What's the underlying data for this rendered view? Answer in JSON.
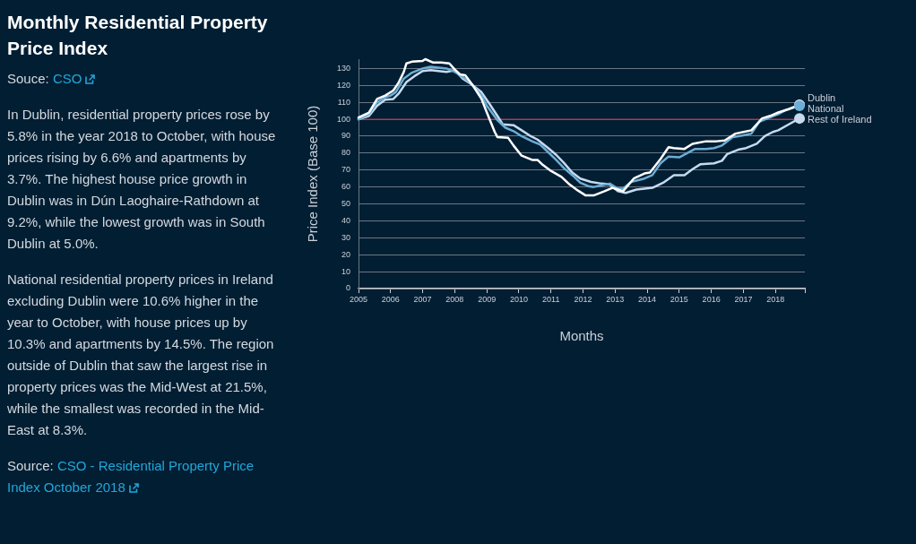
{
  "chart_data": {
    "type": "line",
    "title": "Monthly Residential Property Price Index",
    "annotations": [
      "Souce: CSO",
      "In Dublin, residential property prices rose by 5.8% in the year 2018 to October, with house prices rising by 6.6% and apartments by 3.7%. The highest house price growth in Dublin was in Dún Laoghaire-Rathdown at 9.2%, while the lowest growth was in South Dublin at 5.0%.",
      "National residential property prices in Ireland excluding Dublin were 10.6% higher in the year to October, with house prices up by 10.3% and apartments by 14.5%. The region outside of Dublin that saw the largest rise in property prices was the Mid-West at 21.5%, while the smallest was recorded in the Mid-East at 8.3%.",
      "Source: CSO - Residential Property Price Index October 2018"
    ],
    "xlabel": "Months",
    "ylabel": "Price Index (Base 100)",
    "xlim": [
      "2005-01",
      "2018-12"
    ],
    "xticks": [
      "2005",
      "2006",
      "2007",
      "2008",
      "2009",
      "2010",
      "2011",
      "2012",
      "2013",
      "2014",
      "2015",
      "2016",
      "2017",
      "2018",
      {
        "value": "2018-12",
        "label": null
      }
    ],
    "ylim": [
      0,
      135.5
    ],
    "yticks": [
      0,
      10,
      20,
      30,
      40,
      50,
      60,
      70,
      80,
      90,
      100,
      110,
      120,
      130
    ],
    "grid": "y",
    "ref_lines": [
      {
        "axis": "y",
        "value": 100,
        "color": "#a8364a"
      }
    ],
    "series": [
      {
        "name": "Dublin",
        "color": "#ffffff",
        "x": [
          "2005-01",
          "2005-05",
          "2005-08",
          "2005-11",
          "2006-02",
          "2006-04",
          "2006-06",
          "2006-07",
          "2006-09",
          "2007-01",
          "2007-02",
          "2007-05",
          "2007-08",
          "2007-11",
          "2008-01",
          "2008-03",
          "2008-05",
          "2008-08",
          "2008-11",
          "2009-01",
          "2009-04",
          "2009-05",
          "2009-09",
          "2009-11",
          "2010-02",
          "2010-06",
          "2010-08",
          "2010-10",
          "2011-01",
          "2011-05",
          "2011-08",
          "2011-11",
          "2012-02",
          "2012-05",
          "2012-09",
          "2012-12",
          "2013-02",
          "2013-04",
          "2013-08",
          "2013-12",
          "2014-02",
          "2014-06",
          "2014-09",
          "2014-11",
          "2015-03",
          "2015-06",
          "2015-11",
          "2016-03",
          "2016-06",
          "2016-10",
          "2017-01",
          "2017-04",
          "2017-08",
          "2017-11",
          "2018-02",
          "2018-06",
          "2018-10"
        ],
        "values": [
          101,
          104,
          112,
          114,
          117,
          121.5,
          128,
          133,
          134,
          134.5,
          135.5,
          133.5,
          133.5,
          133,
          129.5,
          126.5,
          126,
          119.5,
          112,
          104,
          92.5,
          89.5,
          89,
          84.5,
          78.5,
          76,
          76,
          73,
          69.5,
          66,
          61.5,
          58,
          55,
          55,
          57.5,
          59.5,
          58.5,
          57.5,
          65,
          68,
          68.5,
          76.5,
          83.5,
          83,
          82.5,
          85.5,
          87,
          87,
          87.5,
          91.5,
          92.5,
          93.5,
          100.5,
          102,
          104,
          106,
          108.5
        ]
      },
      {
        "name": "National",
        "color": "#6baed6",
        "x": [
          "2005-01",
          "2005-05",
          "2005-08",
          "2005-11",
          "2006-01",
          "2006-03",
          "2006-06",
          "2006-09",
          "2007-01",
          "2007-04",
          "2007-07",
          "2007-10",
          "2008-01",
          "2008-04",
          "2008-07",
          "2008-11",
          "2009-01",
          "2009-05",
          "2009-08",
          "2009-11",
          "2010-02",
          "2010-06",
          "2010-09",
          "2011-01",
          "2011-03",
          "2011-06",
          "2011-09",
          "2011-12",
          "2012-03",
          "2012-05",
          "2012-08",
          "2012-11",
          "2013-02",
          "2013-04",
          "2013-07",
          "2013-12",
          "2014-03",
          "2014-06",
          "2014-09",
          "2015-01",
          "2015-04",
          "2015-07",
          "2015-11",
          "2016-02",
          "2016-05",
          "2016-09",
          "2017-01",
          "2017-04",
          "2017-07",
          "2017-10",
          "2018-02",
          "2018-05",
          "2018-10"
        ],
        "values": [
          100,
          103,
          110,
          113,
          114,
          116,
          124,
          127.5,
          130,
          131,
          130.5,
          130,
          128,
          125,
          121.5,
          114,
          108,
          99.5,
          95,
          93,
          90,
          87,
          85,
          79,
          76,
          71,
          67,
          62.5,
          60.5,
          60,
          61,
          62,
          59,
          59,
          63,
          65,
          67,
          74,
          78,
          77.5,
          80,
          82.5,
          82.5,
          83,
          84.5,
          89.5,
          90.5,
          91.5,
          98.5,
          100.5,
          103,
          105.5,
          108
        ]
      },
      {
        "name": "Rest of Ireland",
        "color": "#c6dbef",
        "x": [
          "2005-01",
          "2005-05",
          "2005-08",
          "2005-11",
          "2006-02",
          "2006-04",
          "2006-07",
          "2006-10",
          "2007-01",
          "2007-04",
          "2007-07",
          "2007-10",
          "2008-01",
          "2008-04",
          "2008-07",
          "2008-11",
          "2009-02",
          "2009-05",
          "2009-07",
          "2009-11",
          "2010-02",
          "2010-05",
          "2010-08",
          "2010-12",
          "2011-03",
          "2011-06",
          "2011-09",
          "2011-12",
          "2012-04",
          "2012-08",
          "2012-11",
          "2013-02",
          "2013-05",
          "2013-09",
          "2013-12",
          "2014-03",
          "2014-07",
          "2014-11",
          "2015-03",
          "2015-06",
          "2015-09",
          "2016-02",
          "2016-05",
          "2016-07",
          "2016-11",
          "2017-02",
          "2017-06",
          "2017-09",
          "2017-12",
          "2018-02",
          "2018-06",
          "2018-10"
        ],
        "values": [
          100,
          102,
          108,
          111.5,
          112,
          115,
          122,
          125.5,
          128.5,
          129,
          128.5,
          128,
          129,
          124,
          121,
          116,
          109,
          102,
          97,
          96.5,
          93.5,
          90.5,
          88,
          83,
          79,
          74,
          68.5,
          65,
          63,
          62,
          61.5,
          57.5,
          56.5,
          58.5,
          59,
          59.5,
          62.5,
          67,
          67,
          70.5,
          73.5,
          74,
          75.5,
          79.5,
          82,
          83,
          85.5,
          90,
          92.5,
          93.5,
          97,
          100.5
        ]
      }
    ]
  }
}
